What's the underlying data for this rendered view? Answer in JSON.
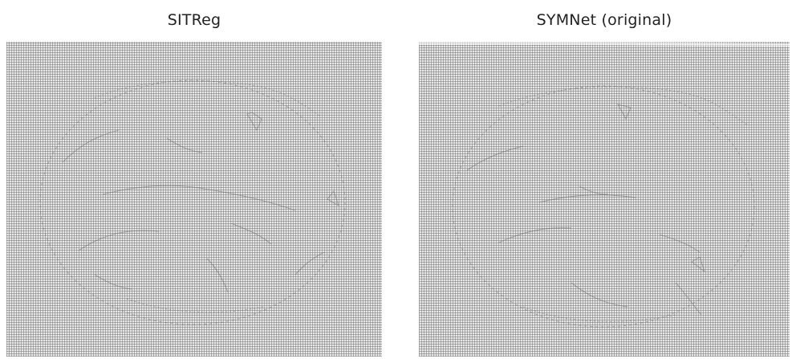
{
  "panels": {
    "left": {
      "title": "SITReg"
    },
    "right": {
      "title": "SYMNet (original)"
    }
  },
  "colors": {
    "background": "#ffffff",
    "grid": "#8a8a8a",
    "grid_fill": "#e9e9e9",
    "distortion": "#6a6a6a"
  }
}
